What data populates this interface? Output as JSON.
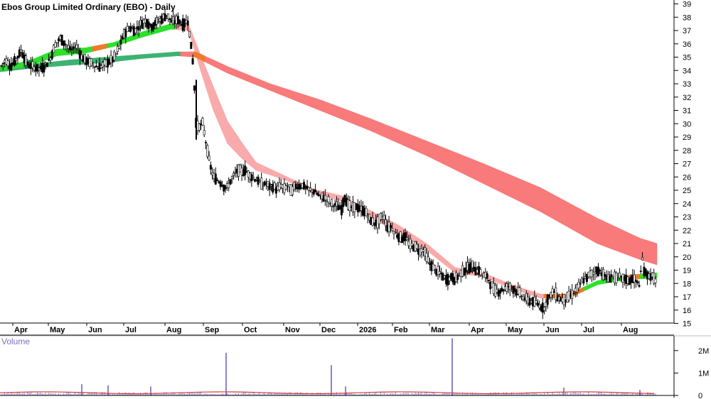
{
  "chart_data": {
    "type": "candlestick",
    "title": "Ebos Group Limited Ordinary (EBO) - Daily",
    "volume_label": "Volume",
    "x_tick_labels": [
      "Apr",
      "May",
      "Jun",
      "Jul",
      "Aug",
      "Sep",
      "Oct",
      "Nov",
      "Dec",
      "2026",
      "Feb",
      "Mar",
      "Apr",
      "May",
      "Jun",
      "Jul",
      "Aug"
    ],
    "y_range": [
      15,
      39
    ],
    "y_ticks": [
      15,
      16,
      17,
      18,
      19,
      20,
      21,
      22,
      23,
      24,
      25,
      26,
      27,
      28,
      29,
      30,
      31,
      32,
      33,
      34,
      35,
      36,
      37,
      38,
      39
    ],
    "volume_range": [
      0,
      2500000
    ],
    "volume_ticks": [
      {
        "value": 0,
        "label": "0"
      },
      {
        "value": 1000000,
        "label": "1M"
      },
      {
        "value": 2000000,
        "label": "2M"
      }
    ],
    "price_path": [
      [
        0,
        34.2
      ],
      [
        8,
        34.8
      ],
      [
        15,
        34.3
      ],
      [
        22,
        34.8
      ],
      [
        30,
        35.5
      ],
      [
        38,
        34.5
      ],
      [
        45,
        34.3
      ],
      [
        55,
        34.1
      ],
      [
        62,
        34.3
      ],
      [
        70,
        34.8
      ],
      [
        78,
        36.0
      ],
      [
        85,
        36.4
      ],
      [
        92,
        36.0
      ],
      [
        100,
        35.5
      ],
      [
        108,
        35.8
      ],
      [
        115,
        35.0
      ],
      [
        122,
        34.7
      ],
      [
        130,
        34.5
      ],
      [
        138,
        34.2
      ],
      [
        145,
        34.4
      ],
      [
        152,
        34.6
      ],
      [
        160,
        34.9
      ],
      [
        168,
        35.8
      ],
      [
        175,
        36.8
      ],
      [
        182,
        37.2
      ],
      [
        190,
        37.0
      ],
      [
        198,
        37.5
      ],
      [
        205,
        37.8
      ],
      [
        212,
        37.3
      ],
      [
        220,
        37.6
      ],
      [
        228,
        37.9
      ],
      [
        235,
        38.2
      ],
      [
        242,
        37.6
      ],
      [
        250,
        37.8
      ],
      [
        258,
        37.4
      ],
      [
        264,
        37.8
      ],
      [
        268,
        36.2
      ],
      [
        272,
        34.3
      ],
      [
        276,
        29.8
      ],
      [
        280,
        29.8
      ],
      [
        285,
        30.0
      ],
      [
        290,
        28.5
      ],
      [
        295,
        27.0
      ],
      [
        300,
        26.0
      ],
      [
        305,
        25.8
      ],
      [
        310,
        25.6
      ],
      [
        315,
        25.3
      ],
      [
        320,
        25.2
      ],
      [
        325,
        25.8
      ],
      [
        330,
        26.2
      ],
      [
        335,
        26.5
      ],
      [
        340,
        26.4
      ],
      [
        345,
        26.5
      ],
      [
        350,
        26.2
      ],
      [
        355,
        26.0
      ],
      [
        360,
        25.8
      ],
      [
        365,
        25.6
      ],
      [
        370,
        25.4
      ],
      [
        375,
        25.5
      ],
      [
        380,
        25.2
      ],
      [
        385,
        25.3
      ],
      [
        390,
        25.0
      ],
      [
        395,
        25.4
      ],
      [
        400,
        25.1
      ],
      [
        405,
        25.4
      ],
      [
        410,
        24.9
      ],
      [
        415,
        25.3
      ],
      [
        420,
        25.3
      ],
      [
        425,
        25.4
      ],
      [
        430,
        25.2
      ],
      [
        435,
        25.0
      ],
      [
        440,
        25.0
      ],
      [
        445,
        24.8
      ],
      [
        450,
        24.5
      ],
      [
        455,
        24.5
      ],
      [
        460,
        24.3
      ],
      [
        465,
        24.0
      ],
      [
        470,
        23.9
      ],
      [
        475,
        23.8
      ],
      [
        480,
        23.5
      ],
      [
        485,
        24.5
      ],
      [
        490,
        23.9
      ],
      [
        495,
        23.6
      ],
      [
        500,
        23.8
      ],
      [
        505,
        23.6
      ],
      [
        510,
        23.5
      ],
      [
        515,
        23.3
      ],
      [
        520,
        22.8
      ],
      [
        525,
        22.6
      ],
      [
        530,
        22.5
      ],
      [
        535,
        22.9
      ],
      [
        540,
        23.0
      ],
      [
        545,
        22.2
      ],
      [
        550,
        22.3
      ],
      [
        555,
        21.8
      ],
      [
        560,
        21.6
      ],
      [
        565,
        21.4
      ],
      [
        570,
        21.5
      ],
      [
        575,
        21.0
      ],
      [
        580,
        20.8
      ],
      [
        585,
        20.8
      ],
      [
        590,
        20.4
      ],
      [
        595,
        20.6
      ],
      [
        600,
        20.0
      ],
      [
        605,
        19.4
      ],
      [
        610,
        19.2
      ],
      [
        615,
        18.9
      ],
      [
        620,
        18.7
      ],
      [
        625,
        18.4
      ],
      [
        630,
        18.3
      ],
      [
        635,
        18.5
      ],
      [
        640,
        18.3
      ],
      [
        645,
        18.6
      ],
      [
        650,
        18.9
      ],
      [
        655,
        19.1
      ],
      [
        660,
        19.2
      ],
      [
        665,
        19.3
      ],
      [
        670,
        19.0
      ],
      [
        675,
        18.9
      ],
      [
        680,
        18.6
      ],
      [
        685,
        18.5
      ],
      [
        690,
        18.0
      ],
      [
        695,
        17.5
      ],
      [
        700,
        17.4
      ],
      [
        705,
        17.5
      ],
      [
        710,
        17.6
      ],
      [
        715,
        17.8
      ],
      [
        720,
        17.7
      ],
      [
        725,
        17.5
      ],
      [
        730,
        17.3
      ],
      [
        735,
        17.0
      ],
      [
        740,
        16.8
      ],
      [
        745,
        16.7
      ],
      [
        750,
        16.6
      ],
      [
        755,
        16.5
      ],
      [
        760,
        16.3
      ],
      [
        765,
        16.1
      ],
      [
        770,
        16.8
      ],
      [
        775,
        17.2
      ],
      [
        780,
        17.4
      ],
      [
        785,
        16.9
      ],
      [
        790,
        16.8
      ],
      [
        795,
        16.8
      ],
      [
        800,
        17.0
      ],
      [
        805,
        17.2
      ],
      [
        810,
        17.5
      ],
      [
        815,
        17.8
      ],
      [
        820,
        18.3
      ],
      [
        825,
        18.4
      ],
      [
        830,
        18.7
      ],
      [
        835,
        18.8
      ],
      [
        840,
        19.0
      ],
      [
        845,
        18.9
      ],
      [
        850,
        18.6
      ],
      [
        855,
        18.3
      ],
      [
        860,
        18.6
      ],
      [
        865,
        18.4
      ],
      [
        870,
        18.5
      ],
      [
        875,
        18.4
      ],
      [
        880,
        18.3
      ],
      [
        885,
        18.2
      ],
      [
        890,
        18.4
      ],
      [
        895,
        18.1
      ],
      [
        900,
        17.9
      ],
      [
        903,
        20.0
      ],
      [
        906,
        19.0
      ],
      [
        910,
        18.6
      ],
      [
        915,
        18.6
      ],
      [
        920,
        18.4
      ],
      [
        924,
        17.8
      ]
    ],
    "bands": [
      {
        "role": "short-term-average",
        "lower": [
          [
            0,
            34.0
          ],
          [
            40,
            34.3
          ],
          [
            80,
            35.1
          ],
          [
            120,
            35.3
          ],
          [
            160,
            35.8
          ],
          [
            200,
            36.5
          ],
          [
            240,
            37.1
          ],
          [
            265,
            37.0
          ],
          [
            285,
            33.5
          ],
          [
            300,
            31.0
          ],
          [
            320,
            28.5
          ],
          [
            340,
            27.4
          ],
          [
            360,
            26.5
          ],
          [
            400,
            25.8
          ],
          [
            440,
            24.8
          ],
          [
            480,
            24.2
          ],
          [
            520,
            23.0
          ],
          [
            560,
            21.8
          ],
          [
            600,
            20.5
          ],
          [
            640,
            18.8
          ],
          [
            680,
            18.5
          ],
          [
            720,
            17.6
          ],
          [
            760,
            16.9
          ],
          [
            800,
            16.9
          ],
          [
            840,
            17.9
          ],
          [
            880,
            18.3
          ],
          [
            924,
            18.4
          ]
        ],
        "upper": [
          [
            0,
            34.3
          ],
          [
            40,
            34.7
          ],
          [
            80,
            35.6
          ],
          [
            120,
            35.7
          ],
          [
            160,
            36.1
          ],
          [
            200,
            36.9
          ],
          [
            240,
            37.5
          ],
          [
            265,
            37.5
          ],
          [
            285,
            34.8
          ],
          [
            300,
            32.8
          ],
          [
            320,
            30.2
          ],
          [
            340,
            28.6
          ],
          [
            360,
            27.1
          ],
          [
            400,
            26.1
          ],
          [
            440,
            25.1
          ],
          [
            480,
            24.6
          ],
          [
            520,
            23.5
          ],
          [
            560,
            22.4
          ],
          [
            600,
            21.0
          ],
          [
            640,
            19.2
          ],
          [
            680,
            18.8
          ],
          [
            720,
            17.9
          ],
          [
            760,
            17.2
          ],
          [
            800,
            17.2
          ],
          [
            840,
            18.2
          ],
          [
            880,
            18.6
          ],
          [
            924,
            18.8
          ]
        ]
      },
      {
        "role": "long-term-average",
        "lower": [
          [
            0,
            33.9
          ],
          [
            50,
            34.2
          ],
          [
            100,
            34.4
          ],
          [
            150,
            34.6
          ],
          [
            200,
            34.9
          ],
          [
            250,
            35.1
          ],
          [
            275,
            35.0
          ],
          [
            320,
            33.8
          ],
          [
            380,
            32.5
          ],
          [
            450,
            31.0
          ],
          [
            520,
            29.5
          ],
          [
            600,
            27.6
          ],
          [
            680,
            25.5
          ],
          [
            760,
            23.4
          ],
          [
            840,
            21.0
          ],
          [
            900,
            19.8
          ],
          [
            924,
            19.4
          ]
        ],
        "upper": [
          [
            0,
            34.2
          ],
          [
            50,
            34.5
          ],
          [
            100,
            34.8
          ],
          [
            150,
            35.0
          ],
          [
            200,
            35.2
          ],
          [
            250,
            35.4
          ],
          [
            275,
            35.4
          ],
          [
            320,
            34.3
          ],
          [
            380,
            33.0
          ],
          [
            450,
            31.8
          ],
          [
            520,
            30.4
          ],
          [
            600,
            28.7
          ],
          [
            680,
            27.0
          ],
          [
            760,
            25.2
          ],
          [
            840,
            22.9
          ],
          [
            900,
            21.4
          ],
          [
            924,
            21.0
          ]
        ]
      }
    ],
    "volume_spikes": [
      [
        115,
        500000
      ],
      [
        152,
        450000
      ],
      [
        212,
        400000
      ],
      [
        318,
        1900000
      ],
      [
        466,
        1350000
      ],
      [
        486,
        400000
      ],
      [
        636,
        2550000
      ],
      [
        793,
        350000
      ],
      [
        900,
        250000
      ]
    ]
  }
}
